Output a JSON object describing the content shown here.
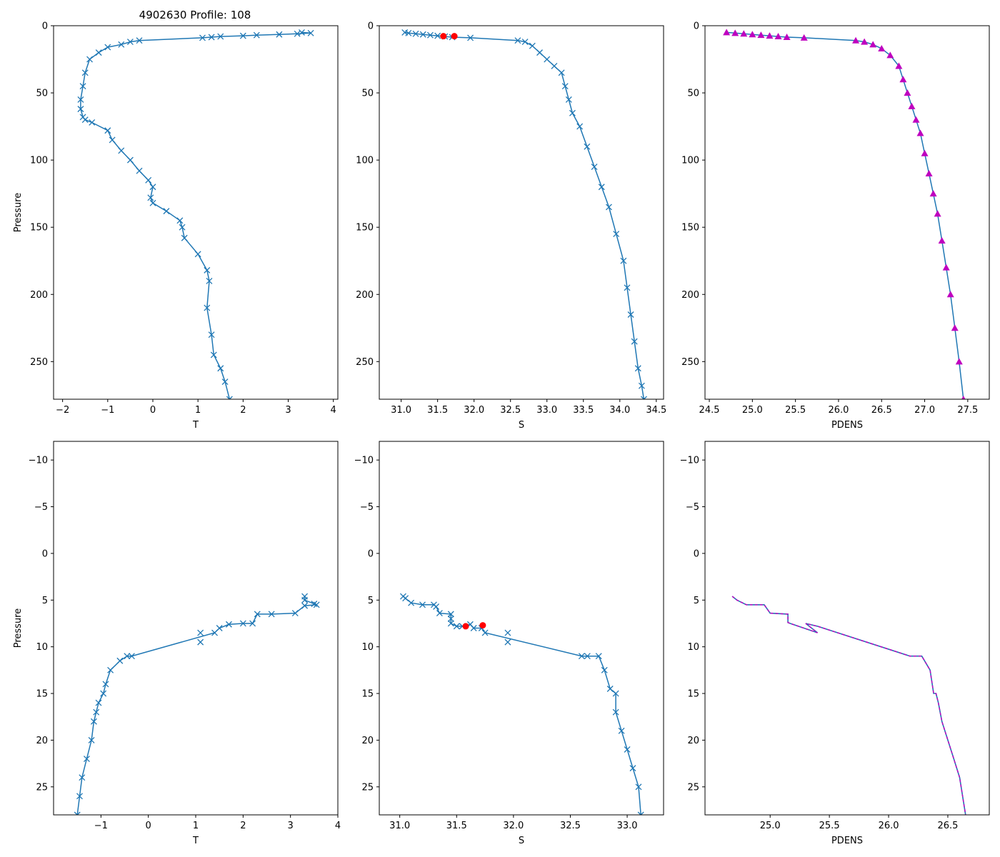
{
  "figure": {
    "title": "4902630 Profile: 108"
  },
  "colors": {
    "profile": "#1f77b4",
    "flag": "#ff0000",
    "density": "#bf00bf"
  },
  "chart_data": [
    {
      "id": "t-full",
      "type": "line",
      "xlabel": "T",
      "ylabel": "Pressure",
      "xlim": [
        -2.2,
        4.1
      ],
      "ylim": [
        278,
        0
      ],
      "xticks": [
        -2,
        -1,
        0,
        1,
        2,
        3,
        4
      ],
      "yticks": [
        0,
        50,
        100,
        150,
        200,
        250
      ],
      "series": [
        {
          "name": "T",
          "marker": "x",
          "line": true,
          "x": [
            3.3,
            3.5,
            3.2,
            2.8,
            2.3,
            2.0,
            1.5,
            1.3,
            1.1,
            -0.3,
            -0.5,
            -0.7,
            -1.0,
            -1.2,
            -1.4,
            -1.5,
            -1.55,
            -1.6,
            -1.6,
            -1.55,
            -1.5,
            -1.35,
            -1.0,
            -0.9,
            -0.7,
            -0.5,
            -0.3,
            -0.1,
            0.0,
            -0.05,
            0.0,
            0.3,
            0.6,
            0.65,
            0.7,
            1.0,
            1.2,
            1.25,
            1.2,
            1.3,
            1.35,
            1.5,
            1.6,
            1.7
          ],
          "y": [
            5,
            5.5,
            6,
            6.5,
            7,
            7.5,
            8,
            8.5,
            9,
            11,
            12,
            14,
            16,
            20,
            25,
            35,
            45,
            55,
            62,
            68,
            70,
            72,
            78,
            85,
            93,
            100,
            108,
            115,
            120,
            128,
            132,
            138,
            145,
            150,
            158,
            170,
            182,
            190,
            210,
            230,
            245,
            255,
            265,
            278
          ]
        }
      ]
    },
    {
      "id": "s-full",
      "type": "line",
      "xlabel": "S",
      "ylabel": "",
      "xlim": [
        30.7,
        34.6
      ],
      "ylim": [
        278,
        0
      ],
      "xticks": [
        31.0,
        31.5,
        32.0,
        32.5,
        33.0,
        33.5,
        34.0,
        34.5
      ],
      "yticks": [
        0,
        50,
        100,
        150,
        200,
        250
      ],
      "series": [
        {
          "name": "S",
          "marker": "x",
          "line": true,
          "x": [
            31.05,
            31.1,
            31.2,
            31.3,
            31.4,
            31.5,
            31.6,
            31.7,
            31.95,
            32.6,
            32.7,
            32.8,
            32.9,
            33.0,
            33.1,
            33.2,
            33.25,
            33.3,
            33.35,
            33.45,
            33.55,
            33.65,
            33.75,
            33.85,
            33.95,
            34.05,
            34.1,
            34.15,
            34.2,
            34.25,
            34.3,
            34.33
          ],
          "y": [
            5,
            5.5,
            6,
            6.5,
            7,
            7.5,
            8,
            8.5,
            9,
            11,
            12,
            15,
            20,
            25,
            30,
            35,
            45,
            55,
            65,
            75,
            90,
            105,
            120,
            135,
            155,
            175,
            195,
            215,
            235,
            255,
            268,
            278
          ]
        },
        {
          "name": "flagged",
          "marker": "dot",
          "x": [
            31.58,
            31.73
          ],
          "y": [
            7.8,
            7.8
          ]
        }
      ]
    },
    {
      "id": "pdens-full",
      "type": "scatter",
      "xlabel": "PDENS",
      "ylabel": "",
      "xlim": [
        24.45,
        27.75
      ],
      "ylim": [
        278,
        0
      ],
      "xticks": [
        24.5,
        25.0,
        25.5,
        26.0,
        26.5,
        27.0,
        27.5
      ],
      "yticks": [
        0,
        50,
        100,
        150,
        200,
        250
      ],
      "series": [
        {
          "name": "PDENS",
          "marker": "triangle",
          "line": true,
          "x": [
            24.7,
            24.8,
            24.9,
            25.0,
            25.1,
            25.2,
            25.3,
            25.4,
            25.6,
            26.2,
            26.3,
            26.4,
            26.5,
            26.6,
            26.7,
            26.75,
            26.8,
            26.85,
            26.9,
            26.95,
            27.0,
            27.05,
            27.1,
            27.15,
            27.2,
            27.25,
            27.3,
            27.35,
            27.4,
            27.45
          ],
          "y": [
            5,
            5.5,
            6,
            6.5,
            7,
            7.5,
            8,
            8.5,
            9,
            11,
            12,
            14,
            17,
            22,
            30,
            40,
            50,
            60,
            70,
            80,
            95,
            110,
            125,
            140,
            160,
            180,
            200,
            225,
            250,
            278
          ]
        }
      ]
    },
    {
      "id": "t-zoom",
      "type": "line",
      "xlabel": "T",
      "ylabel": "Pressure",
      "xlim": [
        -2.0,
        4.0
      ],
      "ylim": [
        28,
        -12
      ],
      "xticks": [
        -1,
        0,
        1,
        2,
        3,
        4
      ],
      "yticks": [
        -10,
        -5,
        0,
        5,
        10,
        15,
        20,
        25
      ],
      "series": [
        {
          "name": "T",
          "marker": "x",
          "line": true,
          "x": [
            3.3,
            3.3,
            3.5,
            3.55,
            3.3,
            3.1,
            2.6,
            2.3,
            2.2,
            2.0,
            1.7,
            1.5,
            1.4,
            -0.35,
            -0.45,
            -0.6,
            -0.8,
            -0.9,
            -0.95,
            -1.05,
            -1.1,
            -1.15,
            -1.2,
            -1.3,
            -1.4,
            -1.45,
            -1.5
          ],
          "y": [
            4.6,
            5.0,
            5.4,
            5.5,
            5.6,
            6.4,
            6.5,
            6.5,
            7.5,
            7.5,
            7.6,
            8.0,
            8.5,
            11,
            11,
            11.5,
            12.5,
            14,
            15,
            16,
            17,
            18,
            20,
            22,
            24,
            26,
            28
          ]
        },
        {
          "name": "T-unlinked",
          "marker": "x",
          "line": false,
          "x": [
            1.1,
            1.1
          ],
          "y": [
            8.5,
            9.5
          ]
        }
      ]
    },
    {
      "id": "s-zoom",
      "type": "line",
      "xlabel": "S",
      "ylabel": "",
      "xlim": [
        30.82,
        33.32
      ],
      "ylim": [
        28,
        -12
      ],
      "xticks": [
        31.0,
        31.5,
        32.0,
        32.5,
        33.0
      ],
      "yticks": [
        -10,
        -5,
        0,
        5,
        10,
        15,
        20,
        25
      ],
      "series": [
        {
          "name": "S",
          "marker": "x",
          "line": true,
          "x": [
            31.03,
            31.05,
            31.1,
            31.2,
            31.3,
            31.32,
            31.35,
            31.45,
            31.45,
            31.45,
            31.5,
            31.55,
            31.62,
            31.65,
            31.72,
            31.75,
            32.6,
            32.65,
            32.75,
            32.8,
            32.85,
            32.9,
            32.9,
            32.95,
            33.0,
            33.05,
            33.1,
            33.12
          ],
          "y": [
            4.6,
            4.8,
            5.3,
            5.5,
            5.5,
            5.7,
            6.4,
            6.5,
            7.0,
            7.5,
            7.8,
            7.8,
            7.6,
            8.0,
            8.0,
            8.5,
            11,
            11,
            11,
            12.5,
            14.5,
            15,
            17,
            19,
            21,
            23,
            25,
            28
          ]
        },
        {
          "name": "S-unlinked",
          "marker": "x",
          "line": false,
          "x": [
            31.95,
            31.95
          ],
          "y": [
            8.5,
            9.5
          ]
        },
        {
          "name": "flagged",
          "marker": "dot",
          "x": [
            31.58,
            31.73
          ],
          "y": [
            7.8,
            7.7
          ]
        }
      ]
    },
    {
      "id": "pdens-zoom",
      "type": "line",
      "xlabel": "PDENS",
      "ylabel": "",
      "xlim": [
        24.45,
        26.85
      ],
      "ylim": [
        28,
        -12
      ],
      "xticks": [
        25.0,
        25.5,
        26.0,
        26.5
      ],
      "yticks": [
        -10,
        -5,
        0,
        5,
        10,
        15,
        20,
        25
      ],
      "series": [
        {
          "name": "PDENS",
          "marker": "none",
          "line": true,
          "dashed": true,
          "x": [
            24.68,
            24.72,
            24.8,
            24.95,
            25.0,
            25.15,
            25.15,
            25.17,
            25.4,
            25.3,
            25.4,
            26.18,
            26.28,
            26.35,
            26.38,
            26.4,
            26.42,
            26.45,
            26.5,
            26.55,
            26.6,
            26.65
          ],
          "y": [
            4.6,
            5.0,
            5.5,
            5.5,
            6.4,
            6.5,
            7.4,
            7.5,
            8.5,
            7.5,
            7.8,
            11,
            11,
            12.5,
            15,
            15,
            16,
            18,
            20,
            22,
            24,
            28
          ]
        }
      ]
    }
  ]
}
